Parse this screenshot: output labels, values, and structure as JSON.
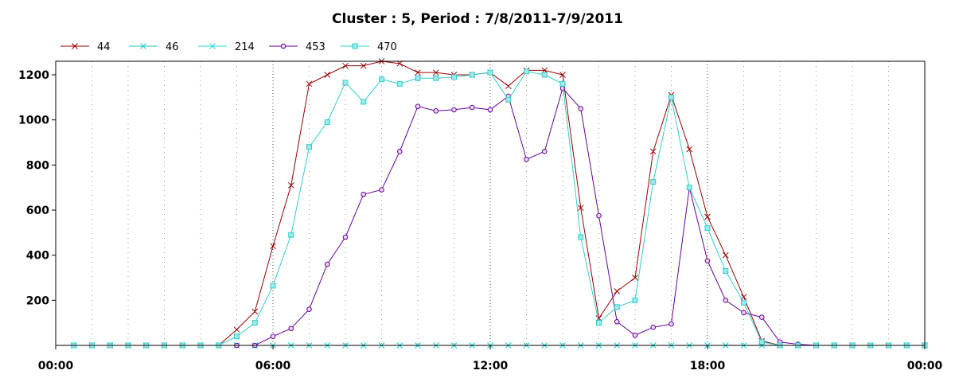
{
  "chart_data": {
    "type": "line",
    "title": "Cluster : 5, Period : 7/8/2011-7/9/2011",
    "xlabel": "",
    "ylabel": "",
    "x_tick_labels": [
      "00:00",
      "06:00",
      "12:00",
      "18:00",
      "00:00"
    ],
    "y_ticks": [
      200,
      400,
      600,
      800,
      1000,
      1200
    ],
    "xlim": [
      0,
      24
    ],
    "ylim": [
      0,
      1260
    ],
    "grid": {
      "vertical_dotted": true,
      "horizontal": false
    },
    "legend_position": "top-left",
    "x_hours": [
      0.5,
      1,
      1.5,
      2,
      2.5,
      3,
      3.5,
      4,
      4.5,
      5,
      5.5,
      6,
      6.5,
      7,
      7.5,
      8,
      8.5,
      9,
      9.5,
      10,
      10.5,
      11,
      11.5,
      12,
      12.5,
      13,
      13.5,
      14,
      14.5,
      15,
      15.5,
      16,
      16.5,
      17,
      17.5,
      18,
      18.5,
      19,
      19.5,
      20,
      20.5,
      21,
      21.5,
      22,
      22.5,
      23,
      23.5,
      24
    ],
    "series": [
      {
        "name": "44",
        "color": "#990000",
        "marker": "x",
        "values": [
          0,
          0,
          0,
          0,
          0,
          0,
          0,
          0,
          0,
          70,
          150,
          440,
          710,
          1160,
          1200,
          1240,
          1240,
          1260,
          1250,
          1210,
          1210,
          1200,
          1200,
          1210,
          1150,
          1220,
          1220,
          1200,
          610,
          120,
          240,
          300,
          860,
          1110,
          870,
          570,
          400,
          215,
          20,
          0,
          0,
          0,
          0,
          0,
          0,
          0,
          0,
          0
        ]
      },
      {
        "name": "46",
        "color": "#22c4c4",
        "marker": "star",
        "values": [
          0,
          0,
          0,
          0,
          0,
          0,
          0,
          0,
          0,
          0,
          0,
          0,
          0,
          0,
          0,
          0,
          0,
          0,
          0,
          0,
          0,
          0,
          0,
          0,
          0,
          0,
          0,
          0,
          0,
          0,
          0,
          0,
          0,
          0,
          0,
          0,
          0,
          0,
          0,
          0,
          0,
          0,
          0,
          0,
          0,
          0,
          0,
          0
        ]
      },
      {
        "name": "214",
        "color": "#22dddd",
        "marker": "x",
        "values": [
          0,
          0,
          0,
          0,
          0,
          0,
          0,
          0,
          0,
          0,
          0,
          0,
          0,
          0,
          0,
          0,
          0,
          0,
          0,
          0,
          0,
          0,
          0,
          0,
          0,
          0,
          0,
          0,
          0,
          0,
          0,
          0,
          0,
          0,
          0,
          0,
          0,
          0,
          0,
          0,
          0,
          0,
          0,
          0,
          0,
          0,
          0,
          0
        ]
      },
      {
        "name": "453",
        "color": "#660099",
        "marker": "circle",
        "values": [
          0,
          0,
          0,
          0,
          0,
          0,
          0,
          0,
          0,
          0,
          0,
          40,
          75,
          160,
          360,
          480,
          670,
          690,
          860,
          1060,
          1040,
          1045,
          1055,
          1045,
          1105,
          825,
          860,
          1140,
          1050,
          575,
          105,
          45,
          80,
          95,
          700,
          375,
          200,
          145,
          125,
          15,
          5,
          0,
          0,
          0,
          0,
          0,
          0,
          0
        ]
      },
      {
        "name": "470",
        "color": "#33cccc",
        "marker": "square",
        "values": [
          0,
          0,
          0,
          0,
          0,
          0,
          0,
          0,
          0,
          40,
          100,
          265,
          490,
          880,
          990,
          1165,
          1080,
          1180,
          1160,
          1185,
          1185,
          1190,
          1200,
          1210,
          1090,
          1215,
          1200,
          1160,
          480,
          100,
          170,
          200,
          725,
          1100,
          700,
          520,
          330,
          190,
          15,
          0,
          0,
          0,
          0,
          0,
          0,
          0,
          0,
          0
        ]
      }
    ]
  }
}
